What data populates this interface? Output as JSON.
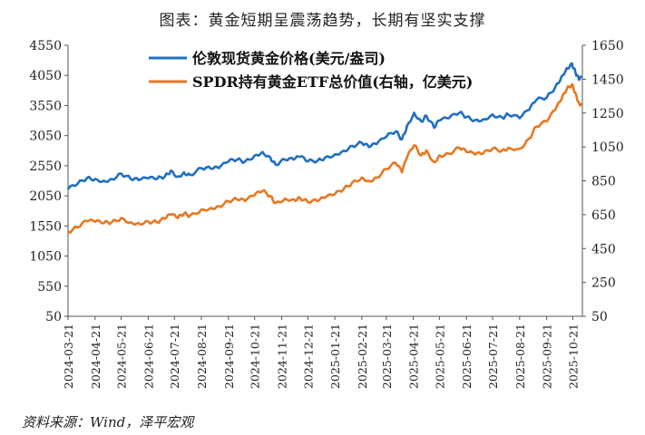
{
  "title": "图表：黄金短期呈震荡趋势，长期有坚实支撑",
  "source": "资料来源：Wind，泽平宏观",
  "chart_data": {
    "type": "line",
    "y_left": {
      "ticks": [
        50,
        550,
        1050,
        1550,
        2050,
        2550,
        3050,
        3550,
        4050,
        4550
      ],
      "range": [
        50,
        4550
      ]
    },
    "y_right": {
      "ticks": [
        50,
        250,
        450,
        650,
        850,
        1050,
        1250,
        1450,
        1650
      ],
      "range": [
        50,
        1650
      ]
    },
    "x_ticks": [
      "2024-03-21",
      "2024-04-21",
      "2024-05-21",
      "2024-06-21",
      "2024-07-21",
      "2024-08-21",
      "2024-09-21",
      "2024-10-21",
      "2024-11-21",
      "2024-12-21",
      "2025-01-21",
      "2025-02-21",
      "2025-03-21",
      "2025-04-21",
      "2025-05-21",
      "2025-06-21",
      "2025-07-21",
      "2025-08-21",
      "2025-09-21",
      "2025-10-21"
    ],
    "grid": false,
    "legend_position": "top-center",
    "series": [
      {
        "name": "伦敦现货黄金价格(美元/盎司)",
        "axis": "left",
        "color": "#1f6fc2",
        "points": [
          [
            "2024-03-21",
            2160
          ],
          [
            "2024-04-01",
            2250
          ],
          [
            "2024-04-12",
            2350
          ],
          [
            "2024-04-21",
            2330
          ],
          [
            "2024-05-01",
            2300
          ],
          [
            "2024-05-10",
            2330
          ],
          [
            "2024-05-21",
            2420
          ],
          [
            "2024-06-01",
            2330
          ],
          [
            "2024-06-10",
            2310
          ],
          [
            "2024-06-21",
            2340
          ],
          [
            "2024-07-01",
            2330
          ],
          [
            "2024-07-10",
            2370
          ],
          [
            "2024-07-17",
            2470
          ],
          [
            "2024-07-25",
            2370
          ],
          [
            "2024-08-01",
            2440
          ],
          [
            "2024-08-08",
            2400
          ],
          [
            "2024-08-21",
            2510
          ],
          [
            "2024-09-01",
            2500
          ],
          [
            "2024-09-10",
            2510
          ],
          [
            "2024-09-21",
            2620
          ],
          [
            "2024-10-01",
            2650
          ],
          [
            "2024-10-10",
            2620
          ],
          [
            "2024-10-21",
            2720
          ],
          [
            "2024-10-30",
            2780
          ],
          [
            "2024-11-08",
            2690
          ],
          [
            "2024-11-14",
            2570
          ],
          [
            "2024-11-25",
            2650
          ],
          [
            "2024-12-05",
            2650
          ],
          [
            "2024-12-12",
            2700
          ],
          [
            "2024-12-21",
            2620
          ],
          [
            "2025-01-01",
            2630
          ],
          [
            "2025-01-10",
            2690
          ],
          [
            "2025-01-21",
            2740
          ],
          [
            "2025-01-31",
            2800
          ],
          [
            "2025-02-10",
            2880
          ],
          [
            "2025-02-21",
            2930
          ],
          [
            "2025-03-01",
            2860
          ],
          [
            "2025-03-10",
            2910
          ],
          [
            "2025-03-21",
            3030
          ],
          [
            "2025-04-01",
            3120
          ],
          [
            "2025-04-08",
            2990
          ],
          [
            "2025-04-14",
            3220
          ],
          [
            "2025-04-22",
            3430
          ],
          [
            "2025-04-30",
            3290
          ],
          [
            "2025-05-06",
            3380
          ],
          [
            "2025-05-15",
            3180
          ],
          [
            "2025-05-21",
            3300
          ],
          [
            "2025-06-01",
            3340
          ],
          [
            "2025-06-13",
            3430
          ],
          [
            "2025-06-21",
            3360
          ],
          [
            "2025-07-01",
            3310
          ],
          [
            "2025-07-10",
            3320
          ],
          [
            "2025-07-21",
            3400
          ],
          [
            "2025-08-01",
            3350
          ],
          [
            "2025-08-08",
            3400
          ],
          [
            "2025-08-21",
            3340
          ],
          [
            "2025-09-01",
            3480
          ],
          [
            "2025-09-09",
            3640
          ],
          [
            "2025-09-21",
            3680
          ],
          [
            "2025-10-01",
            3860
          ],
          [
            "2025-10-08",
            4030
          ],
          [
            "2025-10-14",
            4170
          ],
          [
            "2025-10-20",
            4250
          ],
          [
            "2025-10-24",
            4100
          ],
          [
            "2025-10-28",
            3980
          ],
          [
            "2025-10-31",
            4010
          ]
        ]
      },
      {
        "name": "SPDR持有黄金ETF总价值(右轴，亿美元)",
        "axis": "right",
        "color": "#e87722",
        "points": [
          [
            "2024-03-21",
            548
          ],
          [
            "2024-04-01",
            575
          ],
          [
            "2024-04-12",
            612
          ],
          [
            "2024-04-21",
            608
          ],
          [
            "2024-05-01",
            600
          ],
          [
            "2024-05-10",
            605
          ],
          [
            "2024-05-21",
            630
          ],
          [
            "2024-06-01",
            605
          ],
          [
            "2024-06-10",
            600
          ],
          [
            "2024-06-21",
            610
          ],
          [
            "2024-07-01",
            605
          ],
          [
            "2024-07-10",
            625
          ],
          [
            "2024-07-17",
            650
          ],
          [
            "2024-07-25",
            630
          ],
          [
            "2024-08-01",
            655
          ],
          [
            "2024-08-08",
            645
          ],
          [
            "2024-08-21",
            680
          ],
          [
            "2024-09-01",
            690
          ],
          [
            "2024-09-10",
            700
          ],
          [
            "2024-09-21",
            730
          ],
          [
            "2024-10-01",
            740
          ],
          [
            "2024-10-10",
            730
          ],
          [
            "2024-10-21",
            765
          ],
          [
            "2024-10-30",
            790
          ],
          [
            "2024-11-08",
            760
          ],
          [
            "2024-11-14",
            720
          ],
          [
            "2024-11-25",
            745
          ],
          [
            "2024-12-05",
            740
          ],
          [
            "2024-12-12",
            750
          ],
          [
            "2024-12-21",
            725
          ],
          [
            "2025-01-01",
            730
          ],
          [
            "2025-01-10",
            750
          ],
          [
            "2025-01-21",
            770
          ],
          [
            "2025-01-31",
            800
          ],
          [
            "2025-02-10",
            840
          ],
          [
            "2025-02-21",
            870
          ],
          [
            "2025-03-01",
            850
          ],
          [
            "2025-03-10",
            870
          ],
          [
            "2025-03-21",
            920
          ],
          [
            "2025-04-01",
            955
          ],
          [
            "2025-04-08",
            900
          ],
          [
            "2025-04-14",
            990
          ],
          [
            "2025-04-22",
            1060
          ],
          [
            "2025-04-30",
            1000
          ],
          [
            "2025-05-06",
            1030
          ],
          [
            "2025-05-15",
            960
          ],
          [
            "2025-05-21",
            1000
          ],
          [
            "2025-06-01",
            1010
          ],
          [
            "2025-06-13",
            1045
          ],
          [
            "2025-06-21",
            1020
          ],
          [
            "2025-07-01",
            1005
          ],
          [
            "2025-07-10",
            1010
          ],
          [
            "2025-07-21",
            1040
          ],
          [
            "2025-08-01",
            1030
          ],
          [
            "2025-08-08",
            1045
          ],
          [
            "2025-08-21",
            1040
          ],
          [
            "2025-09-01",
            1100
          ],
          [
            "2025-09-09",
            1170
          ],
          [
            "2025-09-21",
            1200
          ],
          [
            "2025-10-01",
            1270
          ],
          [
            "2025-10-08",
            1330
          ],
          [
            "2025-10-14",
            1390
          ],
          [
            "2025-10-20",
            1420
          ],
          [
            "2025-10-24",
            1370
          ],
          [
            "2025-10-28",
            1310
          ],
          [
            "2025-10-31",
            1300
          ]
        ]
      }
    ]
  }
}
